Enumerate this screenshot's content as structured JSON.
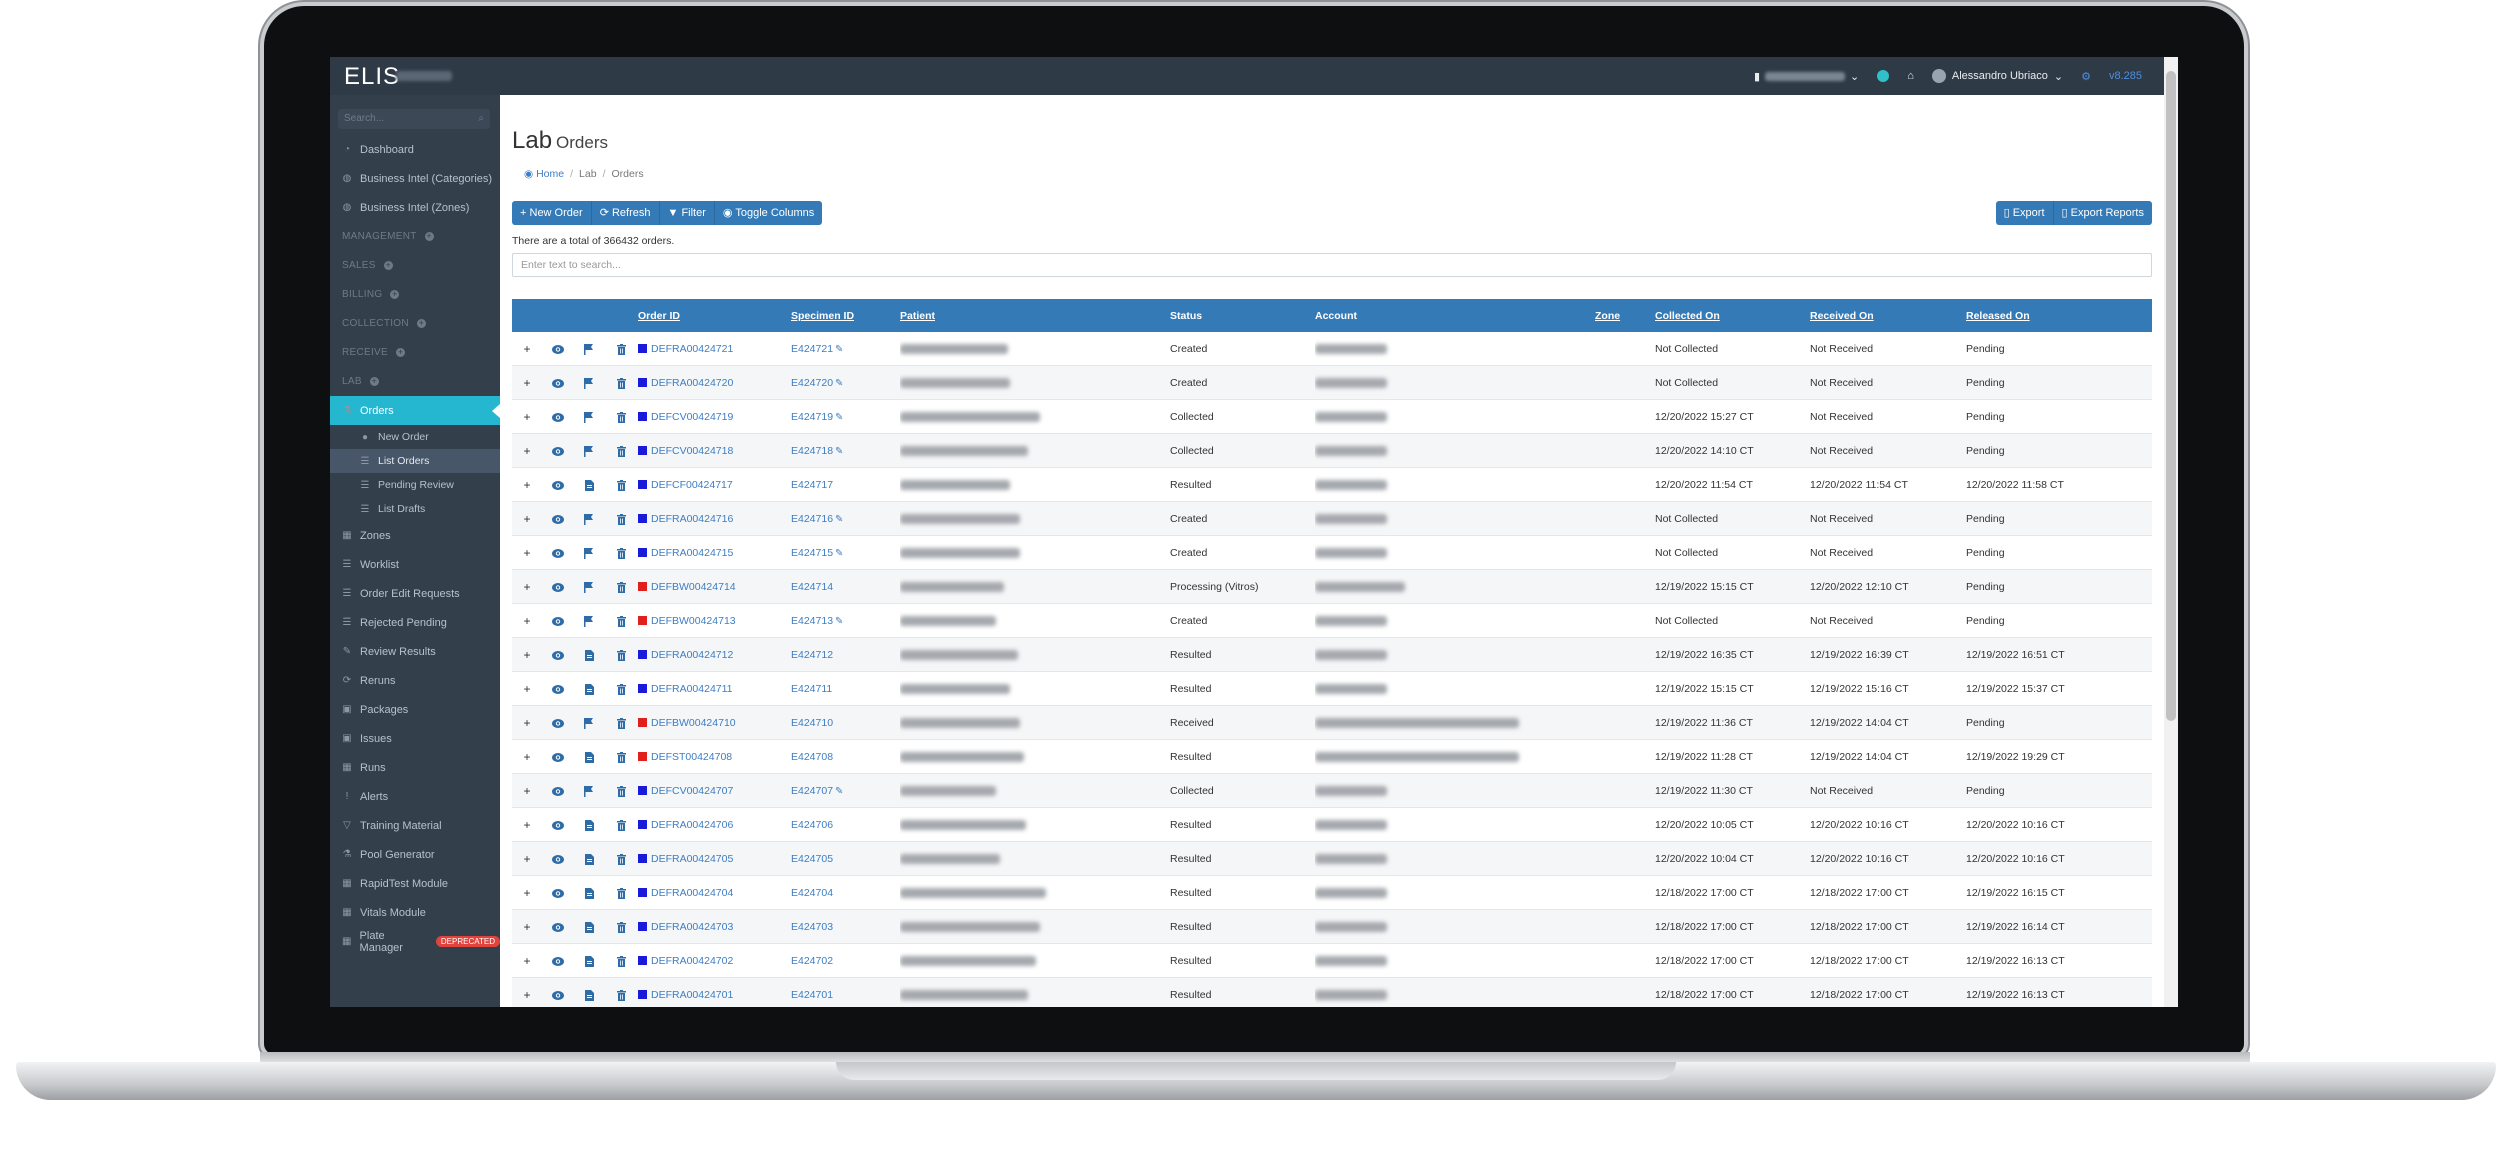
{
  "topbar": {
    "brand": "ELIS",
    "user_name": "Alessandro Ubriaco",
    "version": "v8.285"
  },
  "sidebar": {
    "search_placeholder": "Search...",
    "items": [
      {
        "label": "Dashboard",
        "icon": "gauge-icon",
        "type": "item"
      },
      {
        "label": "Business Intel (Categories)",
        "icon": "globe-icon",
        "type": "item"
      },
      {
        "label": "Business Intel (Zones)",
        "icon": "globe-icon",
        "type": "item"
      },
      {
        "label": "MANAGEMENT",
        "type": "section"
      },
      {
        "label": "SALES",
        "type": "section"
      },
      {
        "label": "BILLING",
        "type": "section"
      },
      {
        "label": "COLLECTION",
        "type": "section"
      },
      {
        "label": "RECEIVE",
        "type": "section"
      },
      {
        "label": "LAB",
        "type": "section"
      },
      {
        "label": "Orders",
        "icon": "flask-icon",
        "type": "active"
      },
      {
        "label": "New Order",
        "icon": "dot-icon",
        "type": "sub"
      },
      {
        "label": "List Orders",
        "icon": "list-icon",
        "type": "sub-current"
      },
      {
        "label": "Pending Review",
        "icon": "list-icon",
        "type": "sub"
      },
      {
        "label": "List Drafts",
        "icon": "list-icon",
        "type": "sub"
      },
      {
        "label": "Zones",
        "icon": "building-icon",
        "type": "item"
      },
      {
        "label": "Worklist",
        "icon": "list-icon",
        "type": "item"
      },
      {
        "label": "Order Edit Requests",
        "icon": "list-icon",
        "type": "item"
      },
      {
        "label": "Rejected Pending",
        "icon": "list-icon",
        "type": "item"
      },
      {
        "label": "Review Results",
        "icon": "pencil-icon",
        "type": "item"
      },
      {
        "label": "Reruns",
        "icon": "refresh-icon",
        "type": "item"
      },
      {
        "label": "Packages",
        "icon": "box-icon",
        "type": "item"
      },
      {
        "label": "Issues",
        "icon": "box-icon",
        "type": "item"
      },
      {
        "label": "Runs",
        "icon": "grid-icon",
        "type": "item"
      },
      {
        "label": "Alerts",
        "icon": "exclamation-icon",
        "type": "item"
      },
      {
        "label": "Training Material",
        "icon": "filter-icon",
        "type": "item"
      },
      {
        "label": "Pool Generator",
        "icon": "flask-icon",
        "type": "item"
      },
      {
        "label": "RapidTest Module",
        "icon": "grid-icon",
        "type": "item"
      },
      {
        "label": "Vitals Module",
        "icon": "grid-icon",
        "type": "item"
      },
      {
        "label": "Plate Manager",
        "icon": "grid-icon",
        "type": "item",
        "badge": "DEPRECATED"
      }
    ]
  },
  "main": {
    "title": "Lab",
    "title_small": "Orders",
    "breadcrumb": {
      "home": "Home",
      "lab": "Lab",
      "orders": "Orders"
    },
    "buttons_left": {
      "new_order": "New Order",
      "refresh": "Refresh",
      "filter": "Filter",
      "toggle_columns": "Toggle Columns"
    },
    "buttons_right": {
      "export": "Export",
      "export_reports": "Export Reports"
    },
    "total_text": "There are a total of 366432 orders.",
    "search_placeholder": "Enter text to search..."
  },
  "table": {
    "columns": {
      "order_id": "Order ID",
      "specimen_id": "Specimen ID",
      "patient": "Patient",
      "status": "Status",
      "account": "Account",
      "zone": "Zone",
      "collected_on": "Collected On",
      "received_on": "Received On",
      "released_on": "Released On"
    },
    "colors": {
      "blue": "#1a1adb",
      "red": "#e0201c"
    },
    "rows": [
      {
        "order_id": "DEFRA00424721",
        "color": "blue",
        "specimen_id": "E424721",
        "pencil": true,
        "status": "Created",
        "collected_on": "Not Collected",
        "received_on": "Not Received",
        "released_on": "Pending",
        "third_icon": "flag-icon"
      },
      {
        "order_id": "DEFRA00424720",
        "color": "blue",
        "specimen_id": "E424720",
        "pencil": true,
        "status": "Created",
        "collected_on": "Not Collected",
        "received_on": "Not Received",
        "released_on": "Pending",
        "third_icon": "flag-icon"
      },
      {
        "order_id": "DEFCV00424719",
        "color": "blue",
        "specimen_id": "E424719",
        "pencil": true,
        "status": "Collected",
        "collected_on": "12/20/2022 15:27 CT",
        "received_on": "Not Received",
        "released_on": "Pending",
        "third_icon": "flag-icon"
      },
      {
        "order_id": "DEFCV00424718",
        "color": "blue",
        "specimen_id": "E424718",
        "pencil": true,
        "status": "Collected",
        "collected_on": "12/20/2022 14:10 CT",
        "received_on": "Not Received",
        "released_on": "Pending",
        "third_icon": "flag-icon"
      },
      {
        "order_id": "DEFCF00424717",
        "color": "blue",
        "specimen_id": "E424717",
        "pencil": false,
        "status": "Resulted",
        "collected_on": "12/20/2022 11:54 CT",
        "received_on": "12/20/2022 11:54 CT",
        "released_on": "12/20/2022 11:58 CT",
        "third_icon": "document-icon"
      },
      {
        "order_id": "DEFRA00424716",
        "color": "blue",
        "specimen_id": "E424716",
        "pencil": true,
        "status": "Created",
        "collected_on": "Not Collected",
        "received_on": "Not Received",
        "released_on": "Pending",
        "third_icon": "flag-icon"
      },
      {
        "order_id": "DEFRA00424715",
        "color": "blue",
        "specimen_id": "E424715",
        "pencil": true,
        "status": "Created",
        "collected_on": "Not Collected",
        "received_on": "Not Received",
        "released_on": "Pending",
        "third_icon": "flag-icon"
      },
      {
        "order_id": "DEFBW00424714",
        "color": "red",
        "specimen_id": "E424714",
        "pencil": false,
        "status": "Processing (Vitros)",
        "collected_on": "12/19/2022 15:15 CT",
        "received_on": "12/20/2022 12:10 CT",
        "released_on": "Pending",
        "third_icon": "flag-icon"
      },
      {
        "order_id": "DEFBW00424713",
        "color": "red",
        "specimen_id": "E424713",
        "pencil": true,
        "status": "Created",
        "collected_on": "Not Collected",
        "received_on": "Not Received",
        "released_on": "Pending",
        "third_icon": "flag-icon"
      },
      {
        "order_id": "DEFRA00424712",
        "color": "blue",
        "specimen_id": "E424712",
        "pencil": false,
        "status": "Resulted",
        "collected_on": "12/19/2022 16:35 CT",
        "received_on": "12/19/2022 16:39 CT",
        "released_on": "12/19/2022 16:51 CT",
        "third_icon": "document-icon"
      },
      {
        "order_id": "DEFRA00424711",
        "color": "blue",
        "specimen_id": "E424711",
        "pencil": false,
        "status": "Resulted",
        "collected_on": "12/19/2022 15:15 CT",
        "received_on": "12/19/2022 15:16 CT",
        "released_on": "12/19/2022 15:37 CT",
        "third_icon": "document-icon"
      },
      {
        "order_id": "DEFBW00424710",
        "color": "red",
        "specimen_id": "E424710",
        "pencil": false,
        "status": "Received",
        "collected_on": "12/19/2022 11:36 CT",
        "received_on": "12/19/2022 14:04 CT",
        "released_on": "Pending",
        "third_icon": "flag-icon"
      },
      {
        "order_id": "DEFST00424708",
        "color": "red",
        "specimen_id": "E424708",
        "pencil": false,
        "status": "Resulted",
        "collected_on": "12/19/2022 11:28 CT",
        "received_on": "12/19/2022 14:04 CT",
        "released_on": "12/19/2022 19:29 CT",
        "third_icon": "document-icon"
      },
      {
        "order_id": "DEFCV00424707",
        "color": "blue",
        "specimen_id": "E424707",
        "pencil": true,
        "status": "Collected",
        "collected_on": "12/19/2022 11:30 CT",
        "received_on": "Not Received",
        "released_on": "Pending",
        "third_icon": "flag-icon"
      },
      {
        "order_id": "DEFRA00424706",
        "color": "blue",
        "specimen_id": "E424706",
        "pencil": false,
        "status": "Resulted",
        "collected_on": "12/20/2022 10:05 CT",
        "received_on": "12/20/2022 10:16 CT",
        "released_on": "12/20/2022 10:16 CT",
        "third_icon": "document-icon"
      },
      {
        "order_id": "DEFRA00424705",
        "color": "blue",
        "specimen_id": "E424705",
        "pencil": false,
        "status": "Resulted",
        "collected_on": "12/20/2022 10:04 CT",
        "received_on": "12/20/2022 10:16 CT",
        "released_on": "12/20/2022 10:16 CT",
        "third_icon": "document-icon"
      },
      {
        "order_id": "DEFRA00424704",
        "color": "blue",
        "specimen_id": "E424704",
        "pencil": false,
        "status": "Resulted",
        "collected_on": "12/18/2022 17:00 CT",
        "received_on": "12/18/2022 17:00 CT",
        "released_on": "12/19/2022 16:15 CT",
        "third_icon": "document-icon"
      },
      {
        "order_id": "DEFRA00424703",
        "color": "blue",
        "specimen_id": "E424703",
        "pencil": false,
        "status": "Resulted",
        "collected_on": "12/18/2022 17:00 CT",
        "received_on": "12/18/2022 17:00 CT",
        "released_on": "12/19/2022 16:14 CT",
        "third_icon": "document-icon"
      },
      {
        "order_id": "DEFRA00424702",
        "color": "blue",
        "specimen_id": "E424702",
        "pencil": false,
        "status": "Resulted",
        "collected_on": "12/18/2022 17:00 CT",
        "received_on": "12/18/2022 17:00 CT",
        "released_on": "12/19/2022 16:13 CT",
        "third_icon": "document-icon"
      },
      {
        "order_id": "DEFRA00424701",
        "color": "blue",
        "specimen_id": "E424701",
        "pencil": false,
        "status": "Resulted",
        "collected_on": "12/18/2022 17:00 CT",
        "received_on": "12/18/2022 17:00 CT",
        "released_on": "12/19/2022 16:13 CT",
        "third_icon": "document-icon"
      }
    ]
  }
}
